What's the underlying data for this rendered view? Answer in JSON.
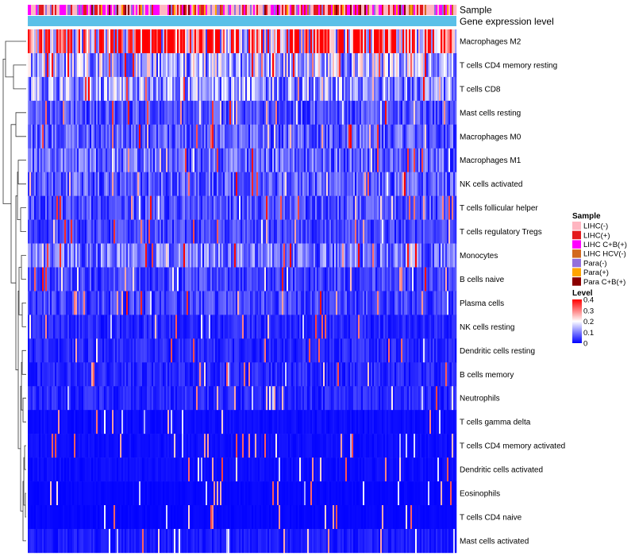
{
  "chart_data": {
    "type": "heatmap",
    "title": "",
    "annotation_tracks": [
      "Sample",
      "Gene expression level"
    ],
    "rows": [
      {
        "name": "Macrophages M2",
        "mean_level": 0.3
      },
      {
        "name": "T cells CD4 memory resting",
        "mean_level": 0.14
      },
      {
        "name": "T cells CD8",
        "mean_level": 0.12
      },
      {
        "name": "Mast cells resting",
        "mean_level": 0.06
      },
      {
        "name": "Macrophages M0",
        "mean_level": 0.07
      },
      {
        "name": "Macrophages M1",
        "mean_level": 0.08
      },
      {
        "name": "NK cells activated",
        "mean_level": 0.07
      },
      {
        "name": "T cells follicular helper",
        "mean_level": 0.06
      },
      {
        "name": "T cells regulatory  Tregs",
        "mean_level": 0.05
      },
      {
        "name": "Monocytes",
        "mean_level": 0.09
      },
      {
        "name": "B cells naive",
        "mean_level": 0.05
      },
      {
        "name": "Plasma cells",
        "mean_level": 0.05
      },
      {
        "name": "NK cells resting",
        "mean_level": 0.03
      },
      {
        "name": "Dendritic cells resting",
        "mean_level": 0.03
      },
      {
        "name": "B cells memory",
        "mean_level": 0.03
      },
      {
        "name": "Neutrophils",
        "mean_level": 0.03
      },
      {
        "name": "T cells gamma delta",
        "mean_level": 0.01
      },
      {
        "name": "T cells CD4 memory activated",
        "mean_level": 0.01
      },
      {
        "name": "Dendritic cells activated",
        "mean_level": 0.01
      },
      {
        "name": "Eosinophils",
        "mean_level": 0.005
      },
      {
        "name": "T cells CD4 naive",
        "mean_level": 0.005
      },
      {
        "name": "Mast cells activated",
        "mean_level": 0.02
      }
    ],
    "n_samples": 270,
    "sample_legend": {
      "title": "Sample",
      "items": [
        {
          "label": "LIHC(-)",
          "color": "#ffb6c1"
        },
        {
          "label": "LIHC(+)",
          "color": "#e41a1c"
        },
        {
          "label": "LIHC C+B(+)",
          "color": "#ff00ff"
        },
        {
          "label": "LIHC HCV(-)",
          "color": "#d2691e"
        },
        {
          "label": "Para(-)",
          "color": "#9370db"
        },
        {
          "label": "Para(+)",
          "color": "#ffa500"
        },
        {
          "label": "Para C+B(+)",
          "color": "#8b0000"
        }
      ]
    },
    "level_legend": {
      "title": "Level",
      "ticks": [
        "0.4",
        "0.3",
        "0.2",
        "0.1",
        "0"
      ],
      "range": [
        0,
        0.4
      ]
    },
    "expression_color": "#5bc0e8"
  }
}
